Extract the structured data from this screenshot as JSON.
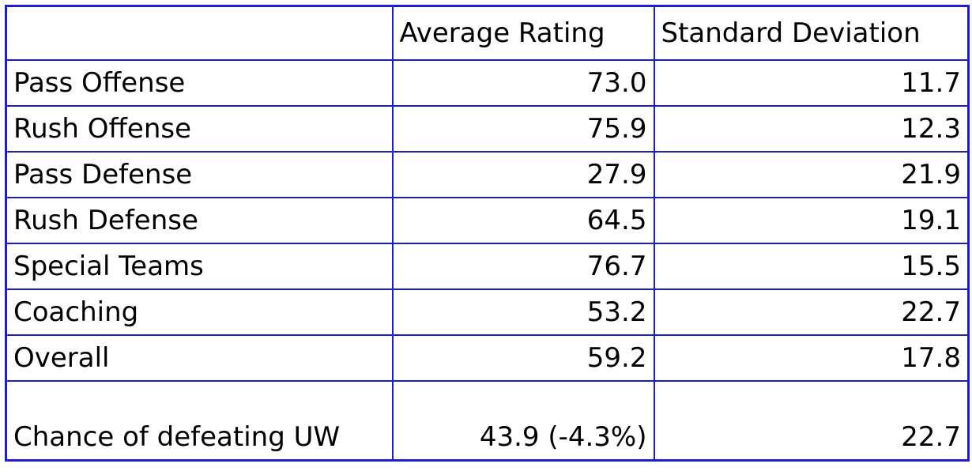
{
  "table": {
    "columns": [
      "Average Rating",
      "Standard Deviation"
    ],
    "rows": [
      [
        "Pass Offense",
        "73.0",
        "11.7"
      ],
      [
        "Rush Offense",
        "75.9",
        "12.3"
      ],
      [
        "Pass Defense",
        "27.9",
        "21.9"
      ],
      [
        "Rush Defense",
        "64.5",
        "19.1"
      ],
      [
        "Special Teams",
        "76.7",
        "15.5"
      ],
      [
        "Coaching",
        "53.2",
        "22.7"
      ],
      [
        "Overall",
        "59.2",
        "17.8"
      ],
      [
        "Chance of defeating UW",
        "43.9 (-4.3%)",
        "22.7"
      ]
    ]
  }
}
